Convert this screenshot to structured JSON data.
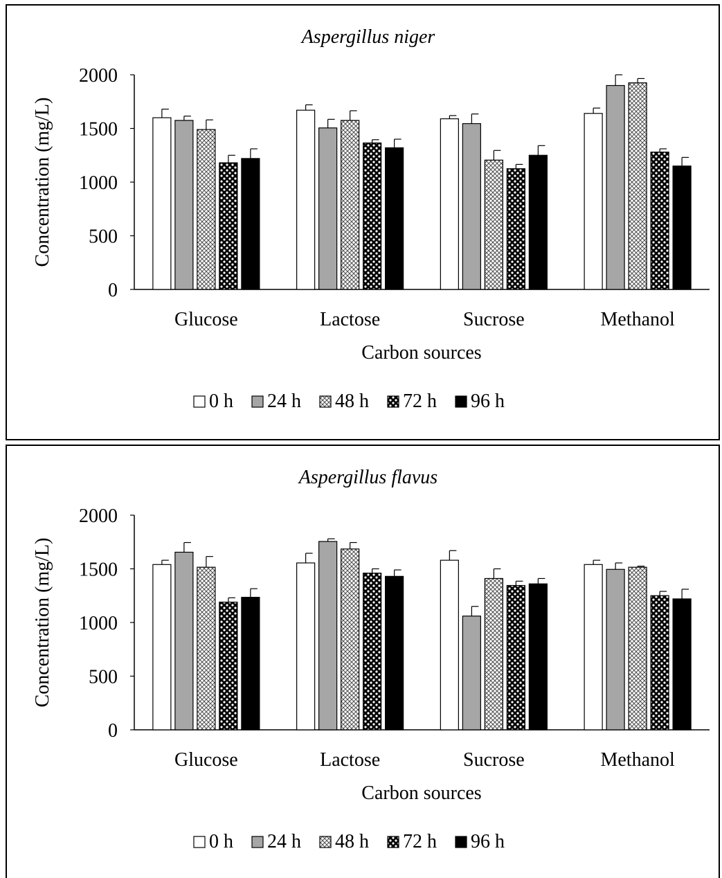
{
  "colors": {
    "0 h": "#ffffff",
    "24 h": "#a6a6a6",
    "48 h": "crosshatch",
    "72 h": "checker",
    "96 h": "#000000"
  },
  "chart_data": [
    {
      "type": "bar",
      "title": "Aspergillus  niger",
      "xlabel": "Carbon sources",
      "ylabel": "Concentration  (mg/L)",
      "ylim": [
        0,
        2000
      ],
      "yticks": [
        "0",
        "500",
        "1000",
        "1500",
        "2000"
      ],
      "categories": [
        "Glucose",
        "Lactose",
        "Sucrose",
        "Methanol"
      ],
      "legend_position": "bottom",
      "series": [
        {
          "name": "0 h",
          "values": [
            1600,
            1670,
            1590,
            1640
          ],
          "errors": [
            80,
            50,
            30,
            50
          ]
        },
        {
          "name": "24 h",
          "values": [
            1575,
            1505,
            1545,
            1900
          ],
          "errors": [
            40,
            80,
            90,
            100
          ]
        },
        {
          "name": "48 h",
          "values": [
            1490,
            1575,
            1205,
            1925
          ],
          "errors": [
            90,
            90,
            90,
            40
          ]
        },
        {
          "name": "72 h",
          "values": [
            1180,
            1365,
            1125,
            1280
          ],
          "errors": [
            70,
            30,
            40,
            30
          ]
        },
        {
          "name": "96 h",
          "values": [
            1220,
            1320,
            1250,
            1150
          ],
          "errors": [
            90,
            80,
            90,
            80
          ]
        }
      ]
    },
    {
      "type": "bar",
      "title": "Aspergillus flavus",
      "xlabel": "Carbon sources",
      "ylabel": "Concentration  (mg/L)",
      "ylim": [
        0,
        2000
      ],
      "yticks": [
        "0",
        "500",
        "1000",
        "1500",
        "2000"
      ],
      "categories": [
        "Glucose",
        "Lactose",
        "Sucrose",
        "Methanol"
      ],
      "legend_position": "bottom",
      "series": [
        {
          "name": "0 h",
          "values": [
            1540,
            1555,
            1580,
            1540
          ],
          "errors": [
            40,
            90,
            90,
            40
          ]
        },
        {
          "name": "24 h",
          "values": [
            1655,
            1755,
            1060,
            1495
          ],
          "errors": [
            90,
            25,
            90,
            60
          ]
        },
        {
          "name": "48 h",
          "values": [
            1515,
            1685,
            1410,
            1515
          ],
          "errors": [
            100,
            60,
            90,
            10
          ]
        },
        {
          "name": "72 h",
          "values": [
            1190,
            1460,
            1345,
            1250
          ],
          "errors": [
            40,
            40,
            40,
            40
          ]
        },
        {
          "name": "96 h",
          "values": [
            1235,
            1430,
            1360,
            1220
          ],
          "errors": [
            80,
            60,
            50,
            90
          ]
        }
      ]
    }
  ]
}
